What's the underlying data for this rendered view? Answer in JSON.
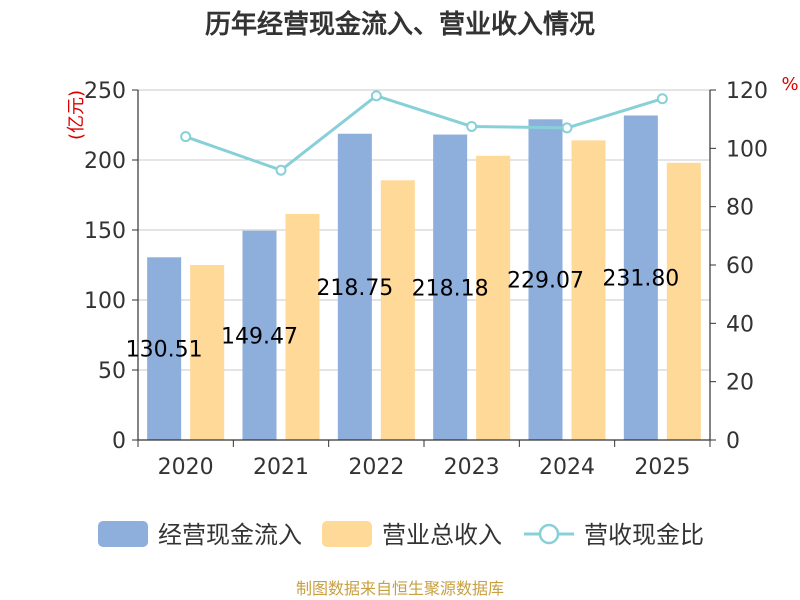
{
  "chart_data": {
    "type": "bar",
    "title": "历年经营现金流入、营业收入情况",
    "categories": [
      "2020",
      "2021",
      "2022",
      "2023",
      "2024",
      "2025"
    ],
    "series": [
      {
        "name": "经营现金流入",
        "type": "bar",
        "axis": "left",
        "color": "#8eaedb",
        "values": [
          130.51,
          149.47,
          218.75,
          218.18,
          229.07,
          231.8
        ],
        "labels": [
          "130.51",
          "149.47",
          "218.75",
          "218.18",
          "229.07",
          "231.80"
        ]
      },
      {
        "name": "营业总收入",
        "type": "bar",
        "axis": "left",
        "color": "#ffd998",
        "values": [
          125,
          161.5,
          185.5,
          203,
          214,
          198
        ]
      },
      {
        "name": "营收现金比",
        "type": "line",
        "axis": "right",
        "color": "#88d0d8",
        "values": [
          104,
          92.5,
          118,
          107.5,
          107,
          117
        ]
      }
    ],
    "y_left": {
      "unit": "(亿元)",
      "ylim": [
        0,
        250
      ],
      "ticks": [
        "0",
        "50",
        "100",
        "150",
        "200",
        "250"
      ]
    },
    "y_right": {
      "unit": "%",
      "ylim": [
        0,
        120
      ],
      "ticks": [
        "0",
        "20",
        "40",
        "60",
        "80",
        "100",
        "120"
      ]
    },
    "grid": true,
    "legend": "bottom",
    "source": "制图数据来自恒生聚源数据库"
  }
}
